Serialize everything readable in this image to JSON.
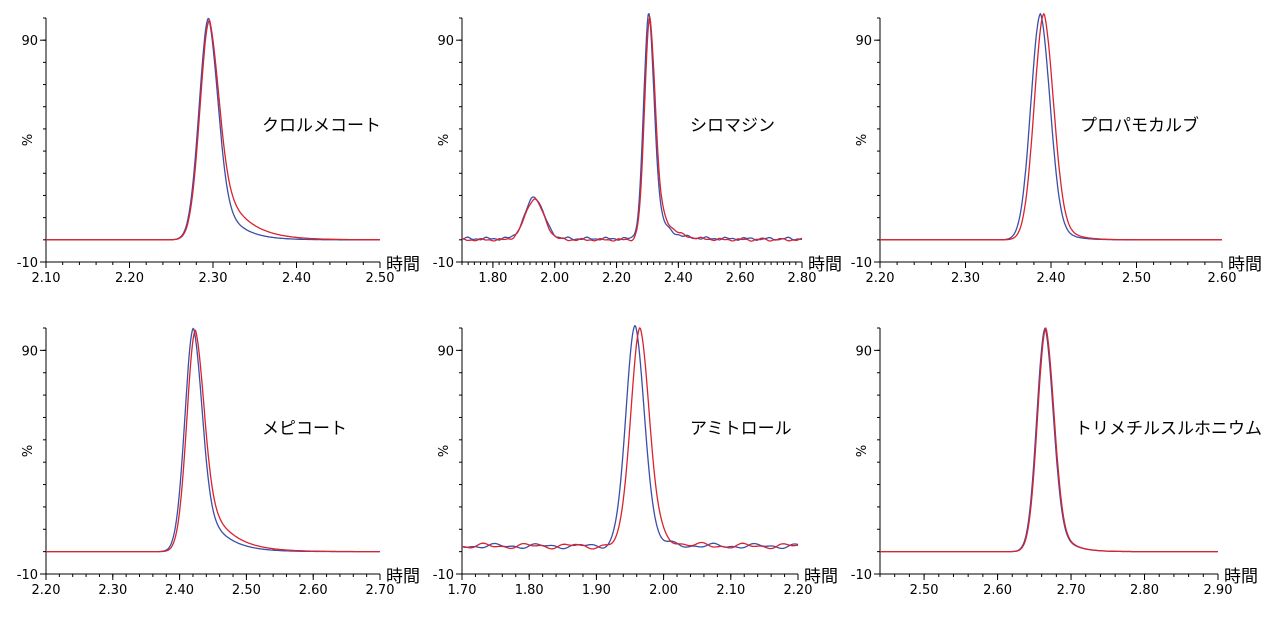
{
  "chart_data": [
    {
      "type": "line",
      "title": "クロルメコート",
      "xlabel": "時間",
      "ylabel": "%",
      "xlim": [
        2.1,
        2.5
      ],
      "ylim": [
        -10,
        100
      ],
      "xticks": [
        "2.10",
        "2.20",
        "2.30",
        "2.40",
        "2.50"
      ],
      "yticks": [
        "90",
        "-10"
      ],
      "series": [
        {
          "color": "#3a4fa8",
          "peaks": [
            {
              "x": 2.295,
              "height": 100,
              "sigma_left": 0.0115,
              "tail": 0.022,
              "tail_frac": 0.35
            }
          ],
          "baseline": 0,
          "noise": 0
        },
        {
          "color": "#d9232e",
          "peaks": [
            {
              "x": 2.296,
              "height": 99,
              "sigma_left": 0.0115,
              "tail": 0.028,
              "tail_frac": 0.45
            }
          ],
          "baseline": 0,
          "noise": 0
        }
      ]
    },
    {
      "type": "line",
      "title": "シロマジン",
      "xlabel": "時間",
      "ylabel": "%",
      "xlim": [
        1.7,
        2.8
      ],
      "ylim": [
        -10,
        100
      ],
      "xticks": [
        "1.80",
        "2.00",
        "2.20",
        "2.40",
        "2.60",
        "2.80"
      ],
      "yticks": [
        "90",
        "-10"
      ],
      "series": [
        {
          "color": "#3a4fa8",
          "peaks": [
            {
              "x": 1.935,
              "height": 19,
              "sigma_left": 0.03,
              "tail": 0.03,
              "tail_frac": 0.1
            },
            {
              "x": 2.305,
              "height": 102,
              "sigma_left": 0.017,
              "tail": 0.035,
              "tail_frac": 0.28
            }
          ],
          "baseline": 0.5,
          "noise": 0.7
        },
        {
          "color": "#d9232e",
          "peaks": [
            {
              "x": 1.935,
              "height": 18.5,
              "sigma_left": 0.03,
              "tail": 0.03,
              "tail_frac": 0.1
            },
            {
              "x": 2.308,
              "height": 101,
              "sigma_left": 0.017,
              "tail": 0.04,
              "tail_frac": 0.33
            }
          ],
          "baseline": 0,
          "noise": 0.6
        }
      ]
    },
    {
      "type": "line",
      "title": "プロパモカルブ",
      "xlabel": "時間",
      "ylabel": "%",
      "xlim": [
        2.2,
        2.6
      ],
      "ylim": [
        -10,
        100
      ],
      "xticks": [
        "2.20",
        "2.30",
        "2.40",
        "2.50",
        "2.60"
      ],
      "yticks": [
        "90",
        "-10"
      ],
      "series": [
        {
          "color": "#3a4fa8",
          "peaks": [
            {
              "x": 2.388,
              "height": 102,
              "sigma_left": 0.0115,
              "tail": 0.015,
              "tail_frac": 0.2
            }
          ],
          "baseline": 0,
          "noise": 0
        },
        {
          "color": "#d9232e",
          "peaks": [
            {
              "x": 2.392,
              "height": 102,
              "sigma_left": 0.0115,
              "tail": 0.016,
              "tail_frac": 0.22
            }
          ],
          "baseline": 0,
          "noise": 0
        }
      ]
    },
    {
      "type": "line",
      "title": "メピコート",
      "xlabel": "時間",
      "ylabel": "%",
      "xlim": [
        2.2,
        2.7
      ],
      "ylim": [
        -10,
        100
      ],
      "xticks": [
        "2.20",
        "2.30",
        "2.40",
        "2.50",
        "2.60",
        "2.70"
      ],
      "yticks": [
        "90",
        "-10"
      ],
      "series": [
        {
          "color": "#3a4fa8",
          "peaks": [
            {
              "x": 2.421,
              "height": 100,
              "sigma_left": 0.013,
              "tail": 0.03,
              "tail_frac": 0.35
            }
          ],
          "baseline": 0,
          "noise": 0
        },
        {
          "color": "#d9232e",
          "peaks": [
            {
              "x": 2.424,
              "height": 99,
              "sigma_left": 0.013,
              "tail": 0.034,
              "tail_frac": 0.4
            }
          ],
          "baseline": 0,
          "noise": 0
        }
      ]
    },
    {
      "type": "line",
      "title": "アミトロール",
      "xlabel": "時間",
      "ylabel": "%",
      "xlim": [
        1.7,
        2.2
      ],
      "ylim": [
        -10,
        100
      ],
      "xticks": [
        "1.70",
        "1.80",
        "1.90",
        "2.00",
        "2.10",
        "2.20"
      ],
      "yticks": [
        "90",
        "-10"
      ],
      "series": [
        {
          "color": "#3a4fa8",
          "peaks": [
            {
              "x": 1.958,
              "height": 98,
              "sigma_left": 0.014,
              "tail": 0.02,
              "tail_frac": 0.15
            }
          ],
          "baseline": 2.5,
          "noise": 1.2
        },
        {
          "color": "#d9232e",
          "peaks": [
            {
              "x": 1.965,
              "height": 98,
              "sigma_left": 0.014,
              "tail": 0.022,
              "tail_frac": 0.2
            }
          ],
          "baseline": 2.5,
          "noise": 1.3
        }
      ]
    },
    {
      "type": "line",
      "title": "トリメチルスルホニウム",
      "xlabel": "時間",
      "ylabel": "%",
      "xlim": [
        2.44,
        2.9
      ],
      "ylim": [
        -10,
        100
      ],
      "xticks": [
        "2.50",
        "2.60",
        "2.70",
        "2.80",
        "2.90"
      ],
      "yticks": [
        "90",
        "-10"
      ],
      "series": [
        {
          "color": "#3a4fa8",
          "peaks": [
            {
              "x": 2.665,
              "height": 100,
              "sigma_left": 0.0115,
              "tail": 0.018,
              "tail_frac": 0.25
            }
          ],
          "baseline": 0,
          "noise": 0
        },
        {
          "color": "#d9232e",
          "peaks": [
            {
              "x": 2.666,
              "height": 100,
              "sigma_left": 0.0115,
              "tail": 0.018,
              "tail_frac": 0.25
            }
          ],
          "baseline": 0,
          "noise": 0
        }
      ]
    }
  ]
}
